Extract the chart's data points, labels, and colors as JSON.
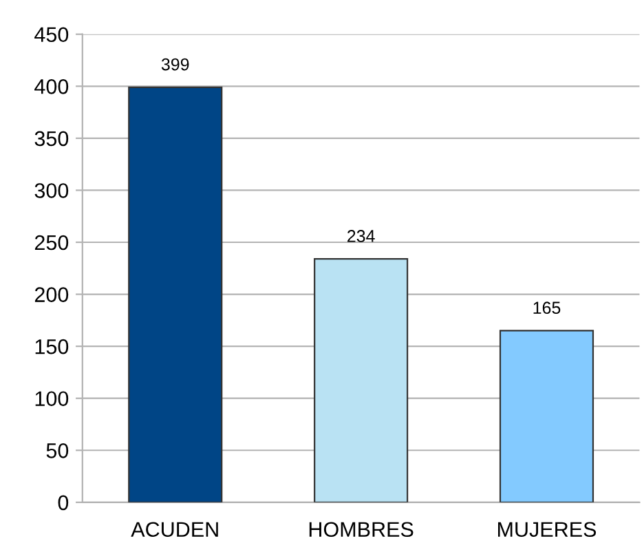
{
  "chart_data": {
    "type": "bar",
    "categories": [
      "ACUDEN",
      "HOMBRES",
      "MUJERES"
    ],
    "values": [
      399,
      234,
      165
    ],
    "colors": [
      "#004586",
      "#b9e2f3",
      "#83caff"
    ],
    "ylim": [
      0,
      450
    ],
    "yticks": [
      0,
      50,
      100,
      150,
      200,
      250,
      300,
      350,
      400,
      450
    ],
    "grid": "y",
    "data_labels": true
  }
}
